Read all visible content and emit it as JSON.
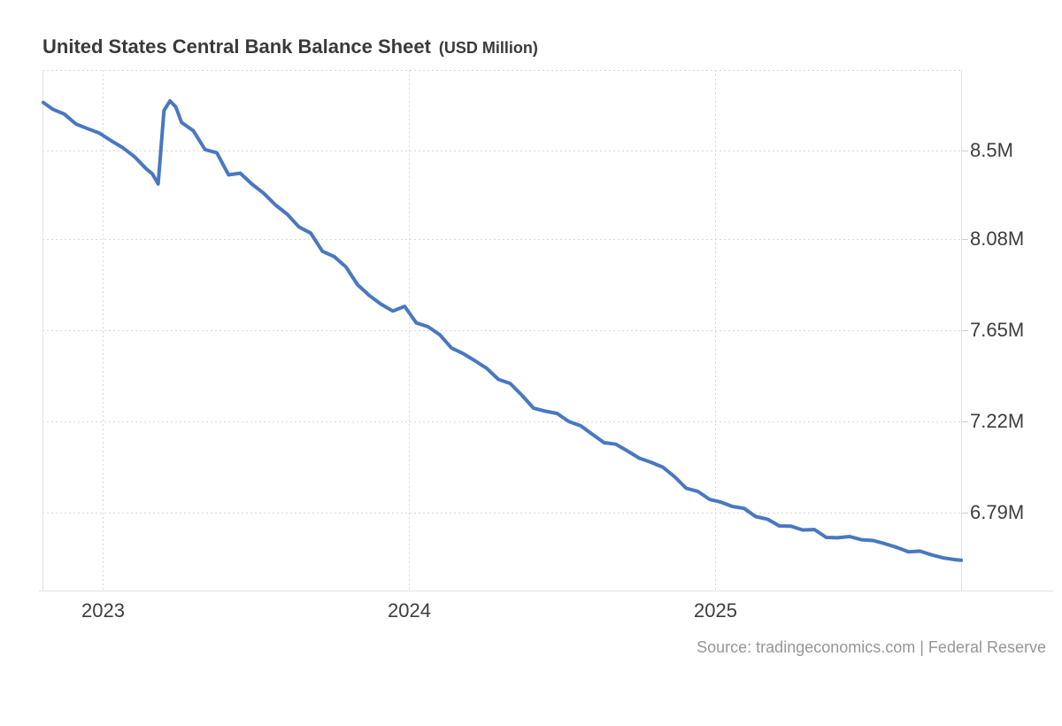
{
  "title": {
    "main": "United States Central Bank Balance Sheet",
    "unit": "(USD Million)"
  },
  "source": {
    "text": "Source: tradingeconomics.com | Federal Reserve"
  },
  "colors": {
    "line": "#4878c0",
    "grid": "#d9d9d9",
    "frame": "#e3e3e3",
    "tick": "#cfcfcf",
    "title_text": "#3a3a3a",
    "axis_text": "#3d3d3d",
    "source_text": "#969696",
    "background": "#ffffff"
  },
  "chart_data": {
    "type": "line",
    "title": "United States Central Bank Balance Sheet",
    "unit": "USD Million",
    "xlabel": "",
    "ylabel": "",
    "legend": "none",
    "grid": "dotted",
    "x_domain": [
      "2022-10-21",
      "2025-10-23"
    ],
    "y_domain": [
      6417800,
      8880400
    ],
    "x_ticks": [
      {
        "label": "2023",
        "year": 2023
      },
      {
        "label": "2024",
        "year": 2024
      },
      {
        "label": "2025",
        "year": 2025
      }
    ],
    "y_ticks": [
      {
        "label": "8.5M",
        "value": 8500000
      },
      {
        "label": "8.08M",
        "value": 8080000
      },
      {
        "label": "7.65M",
        "value": 7650000
      },
      {
        "label": "7.22M",
        "value": 7220000
      },
      {
        "label": "6.79M",
        "value": 6790000
      }
    ],
    "series": [
      {
        "name": "Central Bank Balance Sheet",
        "points": [
          [
            "2022-10-22",
            8727000
          ],
          [
            "2022-11-02",
            8695000
          ],
          [
            "2022-11-16",
            8672000
          ],
          [
            "2022-11-30",
            8625000
          ],
          [
            "2022-12-14",
            8603000
          ],
          [
            "2022-12-28",
            8582000
          ],
          [
            "2023-01-11",
            8546000
          ],
          [
            "2023-01-25",
            8513000
          ],
          [
            "2023-02-08",
            8470000
          ],
          [
            "2023-02-22",
            8413000
          ],
          [
            "2023-03-01",
            8390000
          ],
          [
            "2023-03-08",
            8342000
          ],
          [
            "2023-03-15",
            8689000
          ],
          [
            "2023-03-22",
            8734000
          ],
          [
            "2023-03-29",
            8706000
          ],
          [
            "2023-04-05",
            8632000
          ],
          [
            "2023-04-19",
            8593000
          ],
          [
            "2023-05-03",
            8504000
          ],
          [
            "2023-05-17",
            8489000
          ],
          [
            "2023-05-31",
            8385000
          ],
          [
            "2023-06-14",
            8393000
          ],
          [
            "2023-06-28",
            8341000
          ],
          [
            "2023-07-12",
            8298000
          ],
          [
            "2023-07-26",
            8243000
          ],
          [
            "2023-08-09",
            8199000
          ],
          [
            "2023-08-23",
            8139000
          ],
          [
            "2023-09-06",
            8110000
          ],
          [
            "2023-09-20",
            8024000
          ],
          [
            "2023-10-04",
            7999000
          ],
          [
            "2023-10-18",
            7950000
          ],
          [
            "2023-11-01",
            7866000
          ],
          [
            "2023-11-15",
            7815000
          ],
          [
            "2023-11-29",
            7774000
          ],
          [
            "2023-12-13",
            7742000
          ],
          [
            "2023-12-27",
            7764000
          ],
          [
            "2024-01-10",
            7686000
          ],
          [
            "2024-01-24",
            7668000
          ],
          [
            "2024-02-07",
            7630000
          ],
          [
            "2024-02-21",
            7567000
          ],
          [
            "2024-03-06",
            7541000
          ],
          [
            "2024-03-20",
            7507000
          ],
          [
            "2024-04-03",
            7471000
          ],
          [
            "2024-04-17",
            7419000
          ],
          [
            "2024-05-01",
            7400000
          ],
          [
            "2024-05-15",
            7344000
          ],
          [
            "2024-05-29",
            7283000
          ],
          [
            "2024-06-12",
            7269000
          ],
          [
            "2024-06-26",
            7258000
          ],
          [
            "2024-07-10",
            7220000
          ],
          [
            "2024-07-24",
            7200000
          ],
          [
            "2024-08-07",
            7160000
          ],
          [
            "2024-08-21",
            7120000
          ],
          [
            "2024-09-04",
            7113000
          ],
          [
            "2024-09-18",
            7081000
          ],
          [
            "2024-10-02",
            7047000
          ],
          [
            "2024-10-16",
            7028000
          ],
          [
            "2024-10-30",
            7005000
          ],
          [
            "2024-11-13",
            6960000
          ],
          [
            "2024-11-27",
            6905000
          ],
          [
            "2024-12-11",
            6890000
          ],
          [
            "2024-12-25",
            6852000
          ],
          [
            "2025-01-08",
            6840000
          ],
          [
            "2025-01-22",
            6819000
          ],
          [
            "2025-02-05",
            6810000
          ],
          [
            "2025-02-19",
            6771000
          ],
          [
            "2025-03-05",
            6759000
          ],
          [
            "2025-03-19",
            6727000
          ],
          [
            "2025-04-02",
            6726000
          ],
          [
            "2025-04-16",
            6708000
          ],
          [
            "2025-04-30",
            6710000
          ],
          [
            "2025-05-14",
            6673000
          ],
          [
            "2025-05-28",
            6671000
          ],
          [
            "2025-06-11",
            6677000
          ],
          [
            "2025-06-25",
            6662000
          ],
          [
            "2025-07-09",
            6658000
          ],
          [
            "2025-07-23",
            6643000
          ],
          [
            "2025-08-06",
            6626000
          ],
          [
            "2025-08-20",
            6605000
          ],
          [
            "2025-09-03",
            6608000
          ],
          [
            "2025-09-17",
            6590000
          ],
          [
            "2025-10-01",
            6576000
          ],
          [
            "2025-10-15",
            6568000
          ],
          [
            "2025-10-22",
            6565000
          ]
        ]
      }
    ]
  }
}
